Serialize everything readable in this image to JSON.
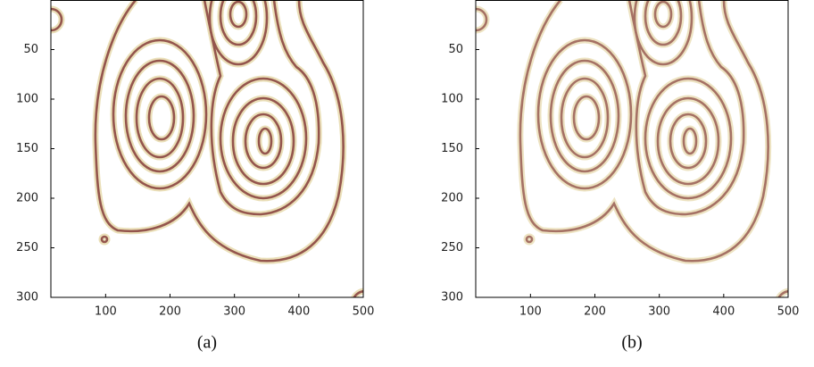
{
  "panels": [
    {
      "caption": "(a)",
      "xlim": [
        15,
        500
      ],
      "ylim": [
        0,
        300
      ],
      "xticks": [
        100,
        200,
        300,
        400,
        500
      ],
      "yticks": [
        50,
        100,
        150,
        200,
        250,
        300
      ]
    },
    {
      "caption": "(b)",
      "xlim": [
        15,
        500
      ],
      "ylim": [
        0,
        300
      ],
      "xticks": [
        100,
        200,
        300,
        400,
        500
      ],
      "yticks": [
        50,
        100,
        150,
        200,
        250,
        300
      ]
    }
  ]
}
